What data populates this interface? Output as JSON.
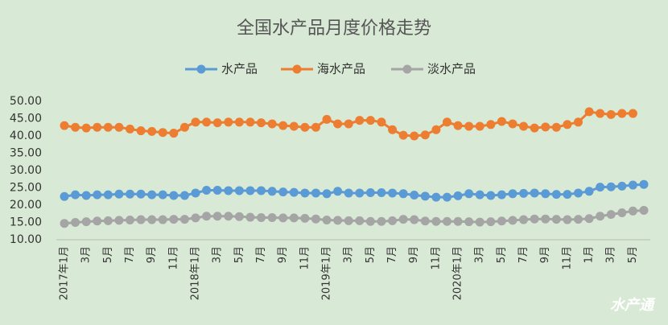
{
  "chart_data": {
    "type": "line",
    "title": "全国水产品月度价格走势",
    "watermark": "水产通",
    "categories": [
      "2017年1月",
      null,
      "3月",
      null,
      "5月",
      null,
      "7月",
      null,
      "9月",
      null,
      "11月",
      null,
      "2018年1月",
      null,
      "3月",
      null,
      "5月",
      null,
      "7月",
      null,
      "9月",
      null,
      "11月",
      null,
      "2019年1月",
      null,
      "3月",
      null,
      "5月",
      null,
      "7月",
      null,
      "9月",
      null,
      "11月",
      null,
      "2020年1月",
      null,
      "3月",
      null,
      "5月",
      null,
      "7月",
      null,
      "9月",
      null,
      "11月",
      null,
      "1月",
      null,
      "3月",
      null,
      "5月",
      null
    ],
    "ylim": [
      10,
      50
    ],
    "yticks": [
      {
        "value": 10,
        "label": "10.00"
      },
      {
        "value": 15,
        "label": "15.00"
      },
      {
        "value": 20,
        "label": "20.00"
      },
      {
        "value": 25,
        "label": "25.00"
      },
      {
        "value": 30,
        "label": "30.00"
      },
      {
        "value": 35,
        "label": "35.00"
      },
      {
        "value": 40,
        "label": "40.00"
      },
      {
        "value": 45,
        "label": "45.00"
      },
      {
        "value": 50,
        "label": "50.00"
      }
    ],
    "grid": false,
    "legend": "top",
    "series": [
      {
        "name": "水产品",
        "color": "#5b9bd5",
        "values": [
          22.5,
          23,
          22.8,
          23,
          23,
          23.2,
          23.2,
          23.2,
          23,
          23,
          22.8,
          22.8,
          23.5,
          24.3,
          24.3,
          24.2,
          24.2,
          24.2,
          24.2,
          24,
          23.8,
          23.7,
          23.5,
          23.5,
          23.3,
          24,
          23.5,
          23.5,
          23.6,
          23.6,
          23.5,
          23.3,
          22.9,
          22.6,
          22.3,
          22.3,
          22.7,
          23.3,
          23,
          22.8,
          23,
          23.3,
          23.4,
          23.5,
          23.3,
          23.1,
          23.1,
          23.5,
          24,
          25.2,
          25.3,
          25.5,
          25.8,
          26
        ]
      },
      {
        "name": "海水产品",
        "color": "#ed7d31",
        "values": [
          43,
          42.5,
          42.3,
          42.5,
          42.5,
          42.5,
          42,
          41.5,
          41.3,
          41,
          40.8,
          42.5,
          44,
          44,
          43.8,
          44,
          44,
          44,
          43.8,
          43.5,
          43,
          42.8,
          42.5,
          42.5,
          44.8,
          43.5,
          43.5,
          44.5,
          44.5,
          44,
          41.8,
          40.2,
          40,
          40.3,
          41.8,
          44,
          43,
          42.8,
          42.8,
          43.3,
          44.2,
          43.5,
          42.8,
          42.3,
          42.6,
          42.5,
          43.3,
          44,
          47,
          46.5,
          46.2,
          46.5,
          46.5,
          null
        ]
      },
      {
        "name": "淡水产品",
        "color": "#a5a5a5",
        "values": [
          14.7,
          15,
          15.2,
          15.4,
          15.5,
          15.6,
          15.7,
          15.8,
          15.8,
          15.8,
          15.9,
          15.9,
          16.3,
          16.8,
          16.8,
          16.8,
          16.7,
          16.5,
          16.4,
          16.4,
          16.3,
          16.3,
          16.2,
          16,
          15.7,
          15.6,
          15.5,
          15.5,
          15.3,
          15.3,
          15.5,
          15.9,
          15.8,
          15.4,
          15.3,
          15.3,
          15.3,
          15.2,
          15.1,
          15.2,
          15.4,
          15.6,
          15.8,
          16,
          16,
          15.9,
          15.8,
          15.9,
          16.1,
          16.8,
          17.3,
          17.8,
          18.3,
          18.5
        ]
      }
    ]
  }
}
